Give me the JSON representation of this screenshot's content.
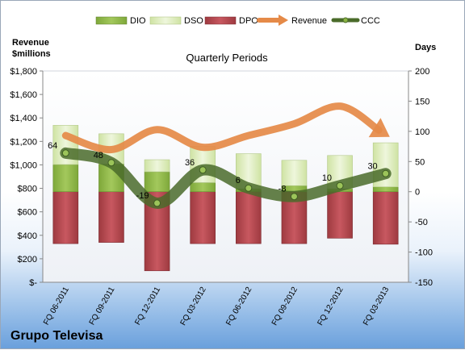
{
  "company": "Grupo Televisa",
  "chart_data": {
    "type": "bar",
    "title": "Quarterly Periods",
    "left_axis_label": "Revenue\n$millions",
    "right_axis_label": "Days",
    "categories": [
      "FQ 06-2011",
      "FQ 09-2011",
      "FQ 12-2011",
      "FQ 03-2012",
      "FQ 06-2012",
      "FQ 09-2012",
      "FQ 12-2012",
      "FQ 03-2013"
    ],
    "left_ylim": [
      0,
      1800
    ],
    "left_ticks": [
      "$-",
      "$200",
      "$400",
      "$600",
      "$800",
      "$1,000",
      "$1,200",
      "$1,400",
      "$1,600",
      "$1,800"
    ],
    "right_ylim": [
      -150,
      200
    ],
    "right_ticks": [
      "-150",
      "-100",
      "-50",
      "0",
      "50",
      "100",
      "150",
      "200"
    ],
    "legend_position": "top",
    "series": [
      {
        "name": "DIO",
        "axis": "right",
        "kind": "stacked-bar",
        "color": "#8bb444",
        "values": [
          45,
          46,
          33,
          15,
          5,
          10,
          5,
          8
        ]
      },
      {
        "name": "DSO",
        "axis": "right",
        "kind": "stacked-bar",
        "color": "#d8eab2",
        "values": [
          65,
          50,
          20,
          60,
          58,
          42,
          55,
          73
        ]
      },
      {
        "name": "DPO",
        "axis": "right",
        "kind": "stacked-bar-negative",
        "color": "#b0444a",
        "values": [
          -86,
          -84,
          -131,
          -86,
          -86,
          -86,
          -77,
          -87
        ]
      },
      {
        "name": "Revenue",
        "axis": "left",
        "kind": "line-arrow",
        "color": "#e58a48",
        "values": [
          1250,
          1130,
          1300,
          1150,
          1250,
          1350,
          1500,
          1260
        ]
      },
      {
        "name": "CCC",
        "axis": "right",
        "kind": "line-markers",
        "color": "#4a6b2a",
        "values": [
          64,
          48,
          -19,
          36,
          6,
          -8,
          10,
          30
        ]
      }
    ],
    "data_labels": [
      "64",
      "48",
      "-19",
      "36",
      "6",
      "-8",
      "10",
      "30"
    ],
    "grid": false
  }
}
